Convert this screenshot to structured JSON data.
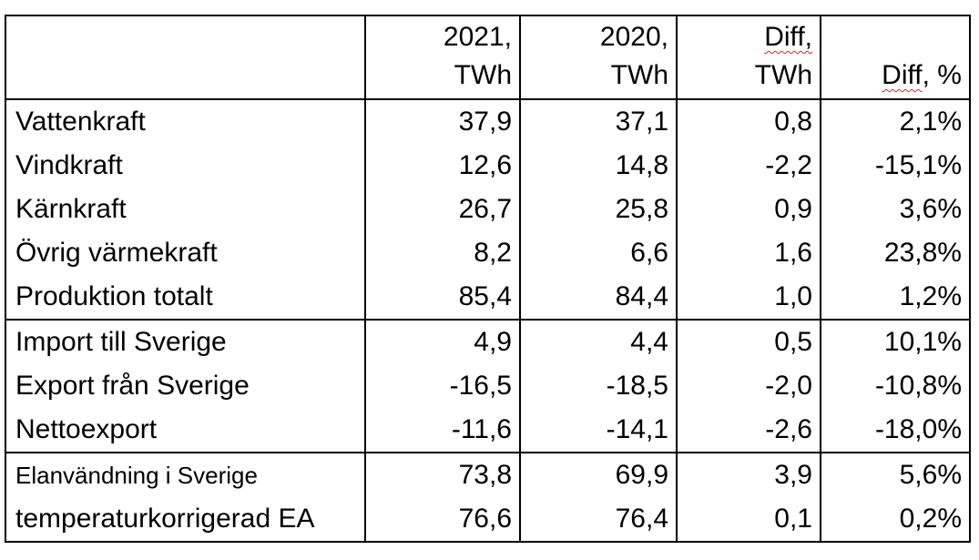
{
  "header": {
    "col1_line1": "2021,",
    "col1_line2": "TWh",
    "col2_line1": "2020,",
    "col2_line2": "TWh",
    "col3_line1": "Diff,",
    "col3_line2": "TWh",
    "col4_word": "Diff",
    "col4_rest": ", %"
  },
  "rows": [
    {
      "label": "Vattenkraft",
      "y2021": "37,9",
      "y2020": "37,1",
      "diff": "0,8",
      "pct": "2,1%"
    },
    {
      "label": "Vindkraft",
      "y2021": "12,6",
      "y2020": "14,8",
      "diff": "-2,2",
      "pct": "-15,1%"
    },
    {
      "label": "Kärnkraft",
      "y2021": "26,7",
      "y2020": "25,8",
      "diff": "0,9",
      "pct": "3,6%"
    },
    {
      "label": "Övrig värmekraft",
      "y2021": "8,2",
      "y2020": "6,6",
      "diff": "1,6",
      "pct": "23,8%"
    },
    {
      "label": "Produktion totalt",
      "y2021": "85,4",
      "y2020": "84,4",
      "diff": "1,0",
      "pct": "1,2%"
    },
    {
      "label": "Import till Sverige",
      "y2021": "4,9",
      "y2020": "4,4",
      "diff": "0,5",
      "pct": "10,1%"
    },
    {
      "label": "Export från Sverige",
      "y2021": "-16,5",
      "y2020": "-18,5",
      "diff": "-2,0",
      "pct": "-10,8%"
    },
    {
      "label": "Nettoexport",
      "y2021": "-11,6",
      "y2020": "-14,1",
      "diff": "-2,6",
      "pct": "-18,0%"
    },
    {
      "label": "Elanvändning i Sverige",
      "y2021": "73,8",
      "y2020": "69,9",
      "diff": "3,9",
      "pct": "5,6%"
    },
    {
      "label": "temperaturkorrigerad EA",
      "y2021": "76,6",
      "y2020": "76,4",
      "diff": "0,1",
      "pct": "0,2%"
    }
  ]
}
